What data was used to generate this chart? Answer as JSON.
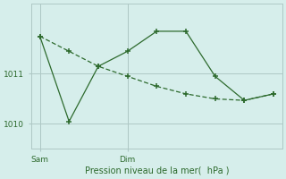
{
  "line1_x": [
    0,
    1,
    2,
    3,
    4,
    5,
    6,
    7,
    8
  ],
  "line1_y": [
    1011.75,
    1011.45,
    1011.15,
    1010.95,
    1010.75,
    1010.6,
    1010.5,
    1010.47,
    1010.6
  ],
  "line2_x": [
    0,
    1,
    2,
    3,
    4,
    5,
    6,
    7,
    8
  ],
  "line2_y": [
    1011.75,
    1010.05,
    1011.15,
    1011.45,
    1011.85,
    1011.85,
    1010.95,
    1010.47,
    1010.6
  ],
  "color": "#2d6a2d",
  "bg_color": "#d6eeeb",
  "grid_color": "#aec8c5",
  "xlabel": "Pression niveau de la mer(  hPa )",
  "yticks": [
    1010,
    1011
  ],
  "xtick_positions": [
    0,
    3
  ],
  "xtick_labels": [
    "Sam",
    "Dim"
  ],
  "xlim": [
    -0.3,
    8.3
  ],
  "ylim": [
    1009.5,
    1012.4
  ],
  "figsize": [
    3.2,
    2.0
  ],
  "dpi": 100
}
